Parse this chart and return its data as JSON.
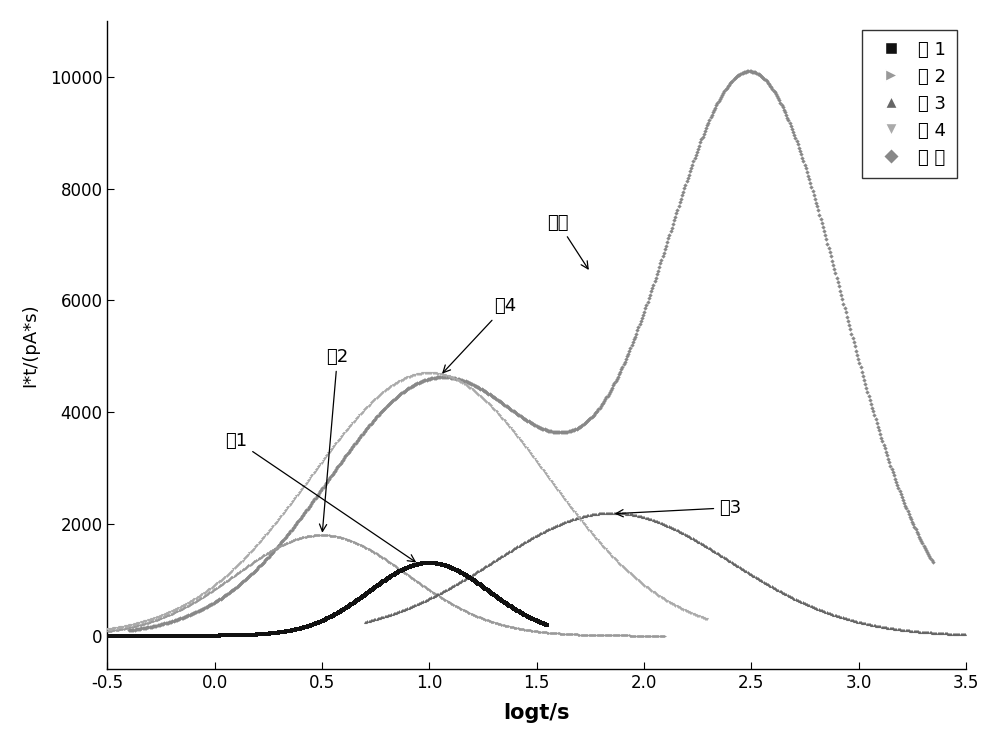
{
  "xlabel": "logt/s",
  "ylabel": "I*t/(pA*s)",
  "xlim": [
    -0.5,
    3.5
  ],
  "ylim": [
    -600,
    11000
  ],
  "yticks": [
    0,
    2000,
    4000,
    6000,
    8000,
    10000
  ],
  "xticks": [
    -0.5,
    0.0,
    0.5,
    1.0,
    1.5,
    2.0,
    2.5,
    3.0,
    3.5
  ],
  "legend_labels": [
    "峰 1",
    "峰 2",
    "峰 3",
    "峰 4",
    "总 体"
  ],
  "ann_feng1_text": "峰1",
  "ann_feng2_text": "峰2",
  "ann_feng3_text": "峰3",
  "ann_feng4_text": "峰4",
  "ann_total_text": "总体",
  "colors": {
    "feng1": "#111111",
    "feng2": "#999999",
    "feng3": "#666666",
    "feng4": "#aaaaaa",
    "total": "#888888"
  },
  "background": "#ffffff",
  "marker_size": 2.2,
  "marker_step": 4
}
